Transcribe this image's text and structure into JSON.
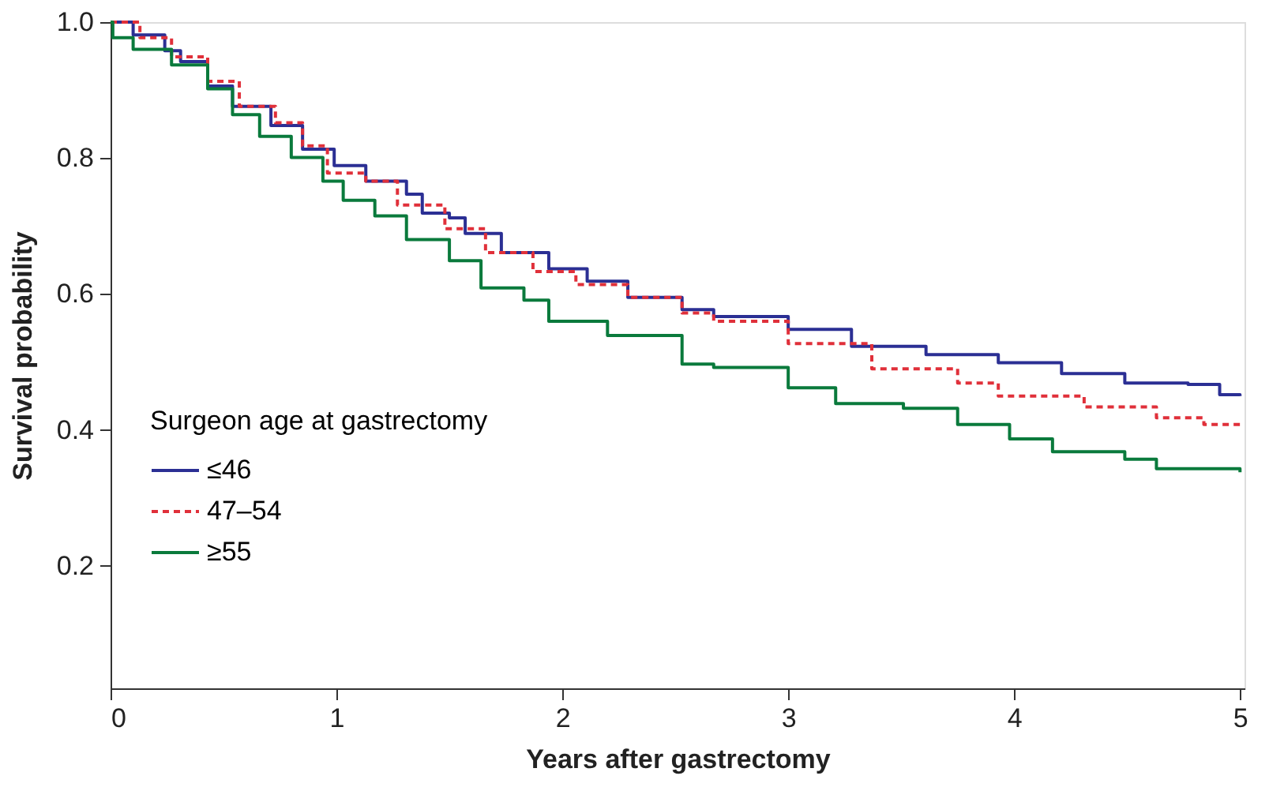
{
  "chart_data": {
    "type": "step",
    "xlabel": "Years after gastrectomy",
    "ylabel": "Survival probability",
    "legend_title": "Surgeon age at gastrectomy",
    "legend": "bottom left",
    "grid": false,
    "xlim": [
      0,
      5.02
    ],
    "xticks": [
      0,
      1,
      2,
      3,
      4,
      5
    ],
    "ylim": [
      0.02,
      1.0
    ],
    "yticks": [
      0.2,
      0.4,
      0.6,
      0.8,
      {
        "value": 1.0,
        "label": "1.0"
      }
    ],
    "series": [
      {
        "name": "≤46",
        "color": "#2b2f94",
        "line_style": "solid",
        "x": [
          0,
          0.1,
          0.24,
          0.31,
          0.43,
          0.54,
          0.71,
          0.85,
          0.99,
          1.13,
          1.31,
          1.38,
          1.5,
          1.57,
          1.73,
          1.94,
          2.11,
          2.29,
          2.53,
          2.67,
          3.0,
          3.28,
          3.61,
          3.93,
          4.21,
          4.49,
          4.77,
          4.91,
          5.0
        ],
        "values": [
          1.0,
          0.981,
          0.958,
          0.942,
          0.906,
          0.876,
          0.848,
          0.813,
          0.789,
          0.766,
          0.747,
          0.719,
          0.712,
          0.689,
          0.661,
          0.637,
          0.619,
          0.595,
          0.577,
          0.567,
          0.548,
          0.523,
          0.511,
          0.499,
          0.483,
          0.469,
          0.467,
          0.452,
          0.45
        ]
      },
      {
        "name": "47–54",
        "color": "#e0303a",
        "line_style": "dashed",
        "x": [
          0,
          0.13,
          0.27,
          0.43,
          0.57,
          0.73,
          0.85,
          0.96,
          1.13,
          1.27,
          1.48,
          1.66,
          1.87,
          2.06,
          2.29,
          2.53,
          2.67,
          3.0,
          3.37,
          3.75,
          3.93,
          4.31,
          4.63,
          4.84,
          5.0
        ],
        "values": [
          1.0,
          0.977,
          0.949,
          0.913,
          0.876,
          0.852,
          0.818,
          0.778,
          0.766,
          0.731,
          0.696,
          0.661,
          0.633,
          0.614,
          0.595,
          0.572,
          0.56,
          0.527,
          0.49,
          0.469,
          0.45,
          0.434,
          0.418,
          0.408,
          0.401
        ]
      },
      {
        "name": "≥55",
        "color": "#0a7a3c",
        "line_style": "solid",
        "x": [
          0,
          0.01,
          0.1,
          0.27,
          0.43,
          0.54,
          0.66,
          0.8,
          0.94,
          1.03,
          1.17,
          1.31,
          1.5,
          1.64,
          1.83,
          1.94,
          2.2,
          2.53,
          2.67,
          3.0,
          3.21,
          3.51,
          3.75,
          3.98,
          4.17,
          4.49,
          4.63,
          5.0
        ],
        "values": [
          1.0,
          0.977,
          0.96,
          0.937,
          0.902,
          0.864,
          0.832,
          0.801,
          0.766,
          0.738,
          0.715,
          0.68,
          0.649,
          0.609,
          0.591,
          0.56,
          0.539,
          0.497,
          0.492,
          0.462,
          0.439,
          0.432,
          0.408,
          0.387,
          0.368,
          0.357,
          0.343,
          0.338
        ]
      }
    ]
  }
}
